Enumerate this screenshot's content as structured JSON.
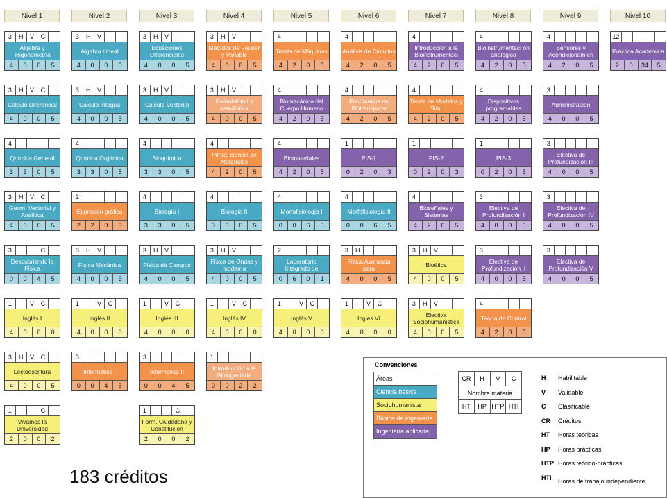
{
  "levels": [
    "Nivel 1",
    "Nivel 2",
    "Nivel 3",
    "Nivel 4",
    "Nivel 5",
    "Nivel 6",
    "Nivel 7",
    "Nivel 8",
    "Nivel 9",
    "Nivel 10"
  ],
  "area_colors": {
    "cb": "#4aaac4",
    "sh": "#f6ef79",
    "bi": "#f3924a",
    "bi_light": "#f3ac7e",
    "ia": "#8563ac",
    "ia_light": "#c8b5dd",
    "cb_light": "#a9d6e3",
    "sh_light": "#f9f4b3"
  },
  "courses": [
    {
      "col": 0,
      "row": 0,
      "area": "cb",
      "name": "Álgebra y Trigonometría",
      "top": [
        "3",
        "H",
        "V",
        "C",
        ""
      ],
      "bot": [
        "4",
        "0",
        "0",
        "5"
      ]
    },
    {
      "col": 1,
      "row": 0,
      "area": "cb",
      "name": "Álgebra Lineal",
      "top": [
        "3",
        "H",
        "V",
        "",
        ""
      ],
      "bot": [
        "4",
        "0",
        "0",
        "5"
      ]
    },
    {
      "col": 2,
      "row": 0,
      "area": "cb",
      "name": "Ecuaciones Diferenciales",
      "top": [
        "3",
        "H",
        "V",
        "",
        ""
      ],
      "bot": [
        "4",
        "0",
        "0",
        "5"
      ]
    },
    {
      "col": 3,
      "row": 0,
      "area": "bi",
      "name": "Métodos de Fourier y Variable",
      "top": [
        "3",
        "H",
        "V",
        "",
        ""
      ],
      "bot": [
        "4",
        "0",
        "0",
        "5"
      ]
    },
    {
      "col": 4,
      "row": 0,
      "area": "bi",
      "name": "Teoría de Máquinas",
      "top": [
        "4",
        "",
        "",
        "",
        ""
      ],
      "bot": [
        "4",
        "2",
        "0",
        "5"
      ]
    },
    {
      "col": 5,
      "row": 0,
      "area": "bi",
      "name": "Análisis de Circuitos",
      "top": [
        "4",
        "",
        "",
        "",
        ""
      ],
      "bot": [
        "4",
        "2",
        "0",
        "5"
      ]
    },
    {
      "col": 6,
      "row": 0,
      "area": "ia",
      "name": "Introducción a la Bioinstrumentaci",
      "top": [
        "4",
        "",
        "",
        "",
        ""
      ],
      "bot": [
        "4",
        "2",
        "0",
        "5"
      ]
    },
    {
      "col": 7,
      "row": 0,
      "area": "ia",
      "name": "Bioinstrumentaci ón analógica",
      "top": [
        "4",
        "",
        "",
        "",
        ""
      ],
      "bot": [
        "4",
        "2",
        "0",
        "5"
      ]
    },
    {
      "col": 8,
      "row": 0,
      "area": "ia",
      "name": "Sensores y Acondicionamien",
      "top": [
        "4",
        "",
        "",
        "",
        ""
      ],
      "bot": [
        "4",
        "2",
        "0",
        "5"
      ]
    },
    {
      "col": 9,
      "row": 0,
      "area": "ia",
      "name": "Práctica Académica",
      "top": [
        "12",
        "",
        "",
        "",
        ""
      ],
      "bot": [
        "2",
        "0",
        "34",
        "5"
      ]
    },
    {
      "col": 0,
      "row": 1,
      "area": "cb",
      "name": "Cálculo Diferencial",
      "top": [
        "3",
        "H",
        "V",
        "C",
        ""
      ],
      "bot": [
        "4",
        "0",
        "0",
        "5"
      ]
    },
    {
      "col": 1,
      "row": 1,
      "area": "cb",
      "name": "Cálculo Integral",
      "top": [
        "3",
        "H",
        "V",
        "",
        ""
      ],
      "bot": [
        "4",
        "0",
        "0",
        "5"
      ]
    },
    {
      "col": 2,
      "row": 1,
      "area": "cb",
      "name": "Cálculo Vectorial",
      "top": [
        "3",
        "H",
        "V",
        "",
        ""
      ],
      "bot": [
        "4",
        "0",
        "0",
        "5"
      ]
    },
    {
      "col": 3,
      "row": 1,
      "area": "bi_light",
      "name": "Probabilidad y estadística",
      "top": [
        "3",
        "H",
        "V",
        "",
        ""
      ],
      "bot": [
        "4",
        "0",
        "0",
        "5"
      ]
    },
    {
      "col": 4,
      "row": 1,
      "area": "ia",
      "name": "Biomecánica del Cuerpo Humano",
      "top": [
        "4",
        "",
        "",
        "",
        ""
      ],
      "bot": [
        "4",
        "2",
        "0",
        "5"
      ]
    },
    {
      "col": 5,
      "row": 1,
      "area": "bi_light",
      "name": "Fenómenos de Biotransporte",
      "top": [
        "4",
        "",
        "",
        "",
        ""
      ],
      "bot": [
        "4",
        "2",
        "0",
        "5"
      ]
    },
    {
      "col": 6,
      "row": 1,
      "area": "bi",
      "name": "Teoría de Modelos y Sim.",
      "top": [
        "4",
        "",
        "",
        "",
        ""
      ],
      "bot": [
        "4",
        "2",
        "0",
        "5"
      ]
    },
    {
      "col": 7,
      "row": 1,
      "area": "ia",
      "name": "Dispositivos programables",
      "top": [
        "4",
        "",
        "",
        "",
        ""
      ],
      "bot": [
        "4",
        "2",
        "0",
        "5"
      ]
    },
    {
      "col": 8,
      "row": 1,
      "area": "ia",
      "name": "Administración",
      "top": [
        "3",
        "",
        "",
        "",
        ""
      ],
      "bot": [
        "4",
        "0",
        "0",
        "5"
      ]
    },
    {
      "col": 0,
      "row": 2,
      "area": "cb",
      "name": "Química General",
      "top": [
        "4",
        "",
        "",
        "",
        ""
      ],
      "bot": [
        "3",
        "3",
        "0",
        "5"
      ]
    },
    {
      "col": 1,
      "row": 2,
      "area": "cb",
      "name": "Química Orgánica",
      "top": [
        "4",
        "",
        "",
        "",
        ""
      ],
      "bot": [
        "3",
        "3",
        "0",
        "5"
      ]
    },
    {
      "col": 2,
      "row": 2,
      "area": "cb",
      "name": "Bioquímica",
      "top": [
        "4",
        "",
        "",
        "",
        ""
      ],
      "bot": [
        "3",
        "3",
        "0",
        "5"
      ]
    },
    {
      "col": 3,
      "row": 2,
      "area": "bi",
      "name": "Introd. ciencia de Materiales",
      "top": [
        "4",
        "",
        "",
        "",
        ""
      ],
      "bot": [
        "4",
        "2",
        "0",
        "5"
      ]
    },
    {
      "col": 4,
      "row": 2,
      "area": "ia",
      "name": "Biomateriales",
      "top": [
        "4",
        "",
        "",
        "",
        ""
      ],
      "bot": [
        "4",
        "2",
        "0",
        "5"
      ]
    },
    {
      "col": 5,
      "row": 2,
      "area": "ia",
      "name": "PIS-1",
      "top": [
        "1",
        "",
        "",
        "",
        ""
      ],
      "bot": [
        "0",
        "2",
        "0",
        "3"
      ]
    },
    {
      "col": 6,
      "row": 2,
      "area": "ia",
      "name": "PIS-2",
      "top": [
        "1",
        "",
        "",
        "",
        ""
      ],
      "bot": [
        "0",
        "2",
        "0",
        "3"
      ]
    },
    {
      "col": 7,
      "row": 2,
      "area": "ia",
      "name": "PIS-3",
      "top": [
        "1",
        "",
        "",
        "",
        ""
      ],
      "bot": [
        "0",
        "2",
        "0",
        "3"
      ]
    },
    {
      "col": 8,
      "row": 2,
      "area": "ia",
      "name": "Electiva de Profundización III",
      "top": [
        "3",
        "",
        "",
        "",
        ""
      ],
      "bot": [
        "4",
        "0",
        "0",
        "5"
      ]
    },
    {
      "col": 0,
      "row": 3,
      "area": "cb",
      "name": "Geom. Vectorial y Analítica",
      "top": [
        "3",
        "H",
        "V",
        "C",
        ""
      ],
      "bot": [
        "4",
        "0",
        "0",
        "5"
      ]
    },
    {
      "col": 1,
      "row": 3,
      "area": "bi",
      "name": "Expresión gráfica",
      "top": [
        "2",
        "",
        "",
        "",
        ""
      ],
      "bot": [
        "2",
        "2",
        "0",
        "3"
      ]
    },
    {
      "col": 2,
      "row": 3,
      "area": "cb",
      "name": "Biología I",
      "top": [
        "4",
        "",
        "",
        "",
        ""
      ],
      "bot": [
        "3",
        "3",
        "0",
        "5"
      ]
    },
    {
      "col": 3,
      "row": 3,
      "area": "cb",
      "name": "Biología II",
      "top": [
        "4",
        "",
        "",
        "",
        ""
      ],
      "bot": [
        "3",
        "3",
        "0",
        "5"
      ]
    },
    {
      "col": 4,
      "row": 3,
      "area": "cb",
      "name": "Morfofisiología I",
      "top": [
        "4",
        "",
        "",
        "",
        ""
      ],
      "bot": [
        "0",
        "0",
        "6",
        "5"
      ]
    },
    {
      "col": 5,
      "row": 3,
      "area": "cb",
      "name": "Morfofisiología II",
      "top": [
        "4",
        "",
        "",
        "",
        ""
      ],
      "bot": [
        "0",
        "0",
        "6",
        "5"
      ]
    },
    {
      "col": 6,
      "row": 3,
      "area": "ia",
      "name": "Bioseñales y Sistemas",
      "top": [
        "4",
        "",
        "",
        "",
        ""
      ],
      "bot": [
        "4",
        "2",
        "0",
        "5"
      ]
    },
    {
      "col": 7,
      "row": 3,
      "area": "ia",
      "name": "Electiva de Profundización I",
      "top": [
        "3",
        "",
        "",
        "",
        ""
      ],
      "bot": [
        "4",
        "0",
        "0",
        "5"
      ]
    },
    {
      "col": 8,
      "row": 3,
      "area": "ia",
      "name": "Electiva de Profundización IV",
      "top": [
        "3",
        "",
        "",
        "",
        ""
      ],
      "bot": [
        "4",
        "0",
        "0",
        "5"
      ]
    },
    {
      "col": 0,
      "row": 4,
      "area": "cb",
      "name": "Descubriendo la Física",
      "top": [
        "3",
        "",
        "",
        "C",
        ""
      ],
      "bot": [
        "0",
        "0",
        "4",
        "5"
      ]
    },
    {
      "col": 1,
      "row": 4,
      "area": "cb",
      "name": "Física Mecánica",
      "top": [
        "3",
        "H",
        "V",
        "",
        ""
      ],
      "bot": [
        "4",
        "0",
        "0",
        "5"
      ]
    },
    {
      "col": 2,
      "row": 4,
      "area": "cb",
      "name": "Física de Campos",
      "top": [
        "3",
        "H",
        "V",
        "",
        ""
      ],
      "bot": [
        "4",
        "0",
        "0",
        "5"
      ]
    },
    {
      "col": 3,
      "row": 4,
      "area": "cb",
      "name": "Física de Ondas y moderna",
      "top": [
        "3",
        "H",
        "V",
        "",
        ""
      ],
      "bot": [
        "4",
        "0",
        "0",
        "5"
      ]
    },
    {
      "col": 4,
      "row": 4,
      "area": "cb",
      "name": "Laboratorio Integrado de",
      "top": [
        "2",
        "",
        "",
        "",
        ""
      ],
      "bot": [
        "0",
        "6",
        "0",
        "1"
      ]
    },
    {
      "col": 5,
      "row": 4,
      "area": "bi",
      "name": "Física Avanzada para",
      "top": [
        "3",
        "H",
        "",
        "",
        ""
      ],
      "bot": [
        "4",
        "0",
        "0",
        "5"
      ]
    },
    {
      "col": 6,
      "row": 4,
      "area": "sh",
      "name": "Bioética",
      "top": [
        "3",
        "H",
        "V",
        "",
        ""
      ],
      "bot": [
        "4",
        "0",
        "0",
        "5"
      ]
    },
    {
      "col": 7,
      "row": 4,
      "area": "ia",
      "name": "Electiva de Profundización II",
      "top": [
        "3",
        "",
        "",
        "",
        ""
      ],
      "bot": [
        "4",
        "0",
        "0",
        "5"
      ]
    },
    {
      "col": 8,
      "row": 4,
      "area": "ia",
      "name": "Electiva de Profundización V",
      "top": [
        "3",
        "",
        "",
        "",
        ""
      ],
      "bot": [
        "4",
        "0",
        "0",
        "5"
      ]
    },
    {
      "col": 0,
      "row": 5,
      "area": "sh",
      "name": "Inglés I",
      "top": [
        "1",
        "",
        "V",
        "C",
        ""
      ],
      "bot": [
        "4",
        "0",
        "0",
        "0"
      ]
    },
    {
      "col": 1,
      "row": 5,
      "area": "sh",
      "name": "Inglés II",
      "top": [
        "1",
        "",
        "V",
        "C",
        ""
      ],
      "bot": [
        "4",
        "0",
        "0",
        "0"
      ]
    },
    {
      "col": 2,
      "row": 5,
      "area": "sh",
      "name": "Inglés III",
      "top": [
        "1",
        "",
        "V",
        "C",
        ""
      ],
      "bot": [
        "4",
        "0",
        "0",
        "0"
      ]
    },
    {
      "col": 3,
      "row": 5,
      "area": "sh",
      "name": "Inglés IV",
      "top": [
        "1",
        "",
        "V",
        "C",
        ""
      ],
      "bot": [
        "4",
        "0",
        "0",
        "0"
      ]
    },
    {
      "col": 4,
      "row": 5,
      "area": "sh",
      "name": "Inglés V",
      "top": [
        "1",
        "",
        "V",
        "C",
        ""
      ],
      "bot": [
        "4",
        "0",
        "0",
        "0"
      ]
    },
    {
      "col": 5,
      "row": 5,
      "area": "sh",
      "name": "Inglés VI",
      "top": [
        "1",
        "",
        "V",
        "C",
        ""
      ],
      "bot": [
        "4",
        "0",
        "0",
        "0"
      ]
    },
    {
      "col": 6,
      "row": 5,
      "area": "sh",
      "name": "Electiva Sociohumanística",
      "top": [
        "3",
        "H",
        "V",
        "",
        ""
      ],
      "bot": [
        "4",
        "0",
        "0",
        "5"
      ]
    },
    {
      "col": 7,
      "row": 5,
      "area": "bi",
      "name": "Teoría de Control",
      "top": [
        "4",
        "",
        "",
        "",
        ""
      ],
      "bot": [
        "4",
        "2",
        "0",
        "5"
      ]
    },
    {
      "col": 0,
      "row": 6,
      "area": "sh",
      "name": "Lectoescritura",
      "top": [
        "3",
        "H",
        "V",
        "C",
        ""
      ],
      "bot": [
        "4",
        "0",
        "0",
        "5"
      ]
    },
    {
      "col": 1,
      "row": 6,
      "area": "bi",
      "name": "Informática I",
      "top": [
        "3",
        "",
        "",
        "",
        ""
      ],
      "bot": [
        "0",
        "0",
        "4",
        "5"
      ]
    },
    {
      "col": 2,
      "row": 6,
      "area": "bi",
      "name": "Informática II",
      "top": [
        "3",
        "",
        "",
        "",
        ""
      ],
      "bot": [
        "0",
        "0",
        "4",
        "5"
      ]
    },
    {
      "col": 3,
      "row": 6,
      "area": "bi_light",
      "name": "Introducción a la Bioingeniería",
      "top": [
        "1",
        "",
        "",
        "",
        ""
      ],
      "bot": [
        "0",
        "0",
        "2",
        "2"
      ]
    },
    {
      "col": 0,
      "row": 7,
      "area": "sh",
      "name": "Vivamos la Universidad",
      "top": [
        "1",
        "",
        "",
        "C",
        ""
      ],
      "bot": [
        "2",
        "0",
        "0",
        "2"
      ]
    },
    {
      "col": 2,
      "row": 7,
      "area": "sh",
      "name": "Form. Ciudadana y Constitución",
      "top": [
        "1",
        "",
        "",
        "C",
        ""
      ],
      "bot": [
        "2",
        "0",
        "0",
        "2"
      ]
    }
  ],
  "total_credits": "183 créditos",
  "legend": {
    "title": "Convenciones",
    "areas_title": "Áreas",
    "areas": [
      {
        "label": "Ciencia básica",
        "area": "cb"
      },
      {
        "label": "Sociohumanista",
        "area": "sh"
      },
      {
        "label": "Básica de ingeniería",
        "area": "bi"
      },
      {
        "label": "Ingeniería aplicada",
        "area": "ia"
      }
    ],
    "key_top": [
      "CR",
      "H",
      "V",
      "C"
    ],
    "key_mid": "Nombre materia",
    "key_bot": [
      "HT",
      "HP",
      "HTP",
      "HTI"
    ],
    "abbreviations": [
      {
        "k": "H",
        "v": "Habilitable"
      },
      {
        "k": "V",
        "v": "Validable"
      },
      {
        "k": "C",
        "v": "Clasificable"
      },
      {
        "k": "CR",
        "v": "Créditos"
      },
      {
        "k": "HT",
        "v": "Horas teóricas"
      },
      {
        "k": "HP",
        "v": "Horas prácticas"
      },
      {
        "k": "HTP",
        "v": "Horas teórico-prácticas"
      },
      {
        "k": "HTI",
        "v": "Horas de trabajo independiente"
      }
    ]
  }
}
